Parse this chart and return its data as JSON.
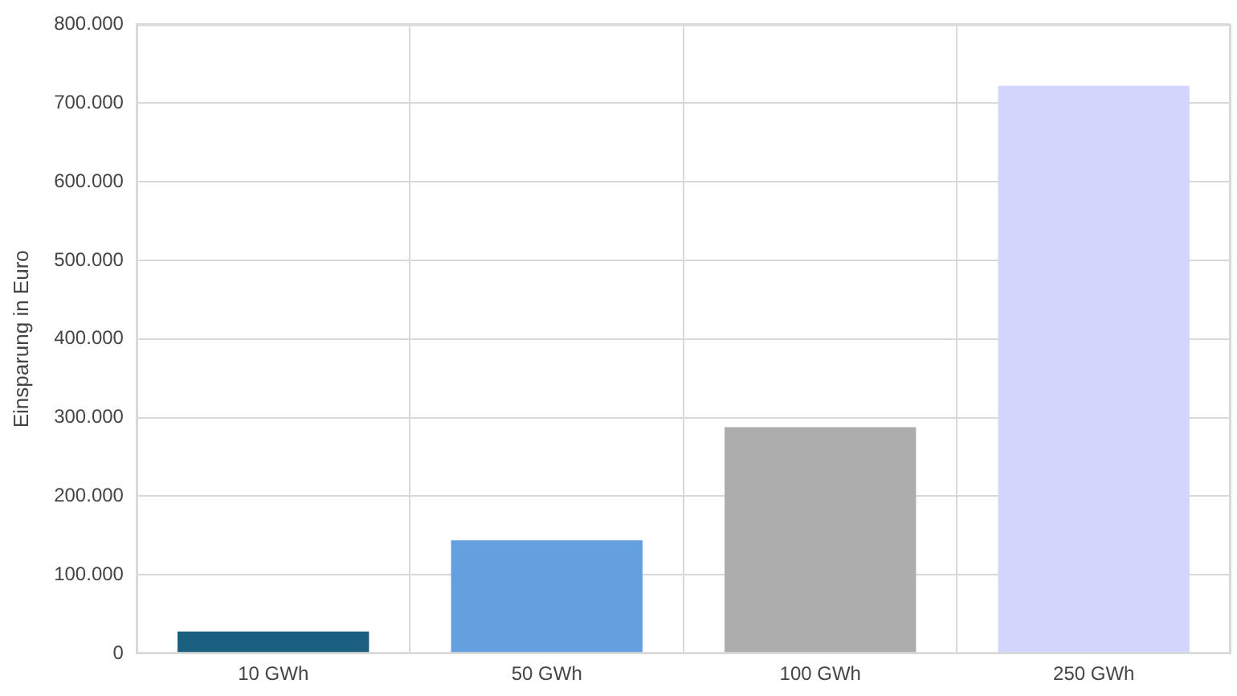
{
  "chart_data": {
    "type": "bar",
    "ylabel": "Einsparung in Euro",
    "categories": [
      "10 GWh",
      "50 GWh",
      "100 GWh",
      "250 GWh"
    ],
    "values": [
      28000,
      144000,
      288000,
      722000
    ],
    "colors": [
      "#1a5e80",
      "#64a0e0",
      "#adadad",
      "#d3d5fc"
    ],
    "ylim": [
      0,
      800000
    ],
    "yticks": [
      {
        "value": 0,
        "label": "0"
      },
      {
        "value": 100000,
        "label": "100.000"
      },
      {
        "value": 200000,
        "label": "200.000"
      },
      {
        "value": 300000,
        "label": "300.000"
      },
      {
        "value": 400000,
        "label": "400.000"
      },
      {
        "value": 500000,
        "label": "500.000"
      },
      {
        "value": 600000,
        "label": "600.000"
      },
      {
        "value": 700000,
        "label": "700.000"
      },
      {
        "value": 800000,
        "label": "800.000"
      }
    ],
    "grid": true,
    "legend": false
  }
}
